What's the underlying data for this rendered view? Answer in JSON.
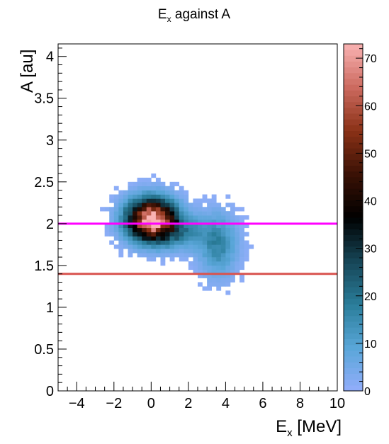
{
  "chart_data": {
    "type": "heatmap",
    "title": "E",
    "title_sub": "x",
    "title_rest": " against A",
    "xlabel": "E",
    "xlabel_sub": "x",
    "xlabel_rest": " [MeV]",
    "ylabel": "A [au]",
    "xlim": [
      -5,
      10
    ],
    "ylim": [
      0,
      4.15
    ],
    "xticks": [
      "-4",
      "-2",
      "0",
      "2",
      "4",
      "6",
      "8",
      "10"
    ],
    "xtick_values": [
      -4,
      -2,
      0,
      2,
      4,
      6,
      8,
      10
    ],
    "yticks": [
      "0",
      "0.5",
      "1",
      "1.5",
      "2",
      "2.5",
      "3",
      "3.5",
      "4"
    ],
    "ytick_values": [
      0,
      0.5,
      1,
      1.5,
      2,
      2.5,
      3,
      3.5,
      4
    ],
    "colorbar": {
      "range": [
        0,
        73
      ],
      "ticks": [
        "0",
        "10",
        "20",
        "30",
        "40",
        "50",
        "60",
        "70"
      ],
      "tick_values": [
        0,
        10,
        20,
        30,
        40,
        50,
        60,
        70
      ],
      "palette": [
        "#93aefb",
        "#59a6d8",
        "#2a7d9a",
        "#164556",
        "#000000",
        "#3a1105",
        "#8a3116",
        "#cc6a5f",
        "#f9b3b3"
      ]
    },
    "lines": [
      {
        "y": 2.0,
        "color": "#ff00ff"
      },
      {
        "y": 1.4,
        "color": "#d9534f"
      }
    ],
    "bin_size": {
      "x": 0.25,
      "y": 0.05
    },
    "clusters": [
      {
        "x": 0.0,
        "y": 2.05,
        "sx": 0.9,
        "sy": 0.17,
        "peak": 72
      },
      {
        "x": 1.6,
        "y": 1.9,
        "sx": 1.0,
        "sy": 0.14,
        "peak": 14
      },
      {
        "x": 3.6,
        "y": 1.75,
        "sx": 0.7,
        "sy": 0.25,
        "peak": 16
      }
    ]
  }
}
